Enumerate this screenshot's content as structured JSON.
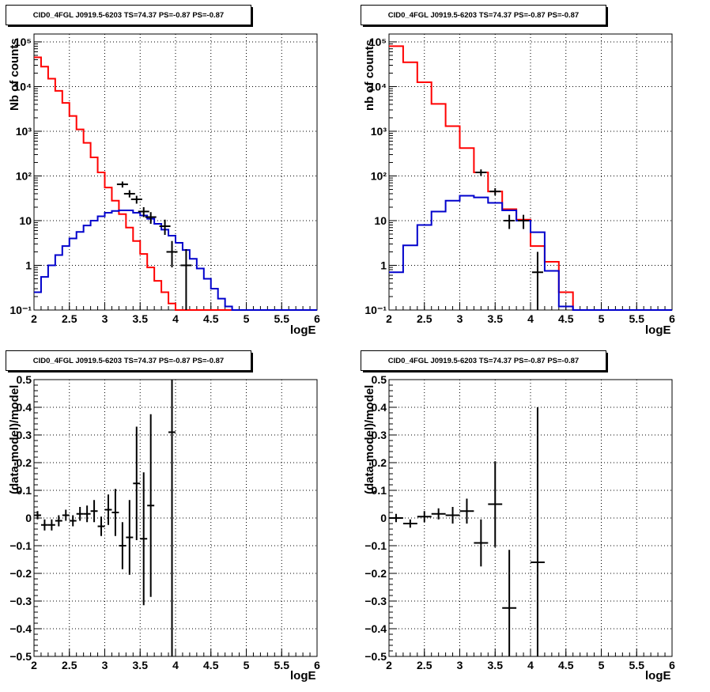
{
  "chart_data": [
    {
      "type": "line",
      "panel": "top-left",
      "title": "CID0_4FGL J0919.5-6203 TS=74.37 PS=-0.87 PS=-0.87",
      "xlabel": "logE",
      "ylabel": "Nb of counts",
      "xlim": [
        2,
        6
      ],
      "ylim": [
        0.1,
        150000
      ],
      "yscale": "log",
      "grid": true,
      "x_ticks": [
        "2",
        "2.5",
        "3",
        "3.5",
        "4",
        "4.5",
        "5",
        "5.5",
        "6"
      ],
      "y_ticks": [
        {
          "value": 0.1,
          "label": "10⁻¹"
        },
        {
          "value": 1,
          "label": "1"
        },
        {
          "value": 10,
          "label": "10"
        },
        {
          "value": 100,
          "label": "10²"
        },
        {
          "value": 1000,
          "label": "10³"
        },
        {
          "value": 10000,
          "label": "10⁴"
        },
        {
          "value": 100000,
          "label": "10⁵"
        }
      ],
      "bin_edges": [
        2.0,
        2.1,
        2.2,
        2.3,
        2.4,
        2.5,
        2.6,
        2.7,
        2.8,
        2.9,
        3.0,
        3.1,
        3.2,
        3.3,
        3.4,
        3.5,
        3.6,
        3.7,
        3.8,
        3.9,
        4.0,
        4.1,
        4.2,
        4.3,
        4.4,
        4.5,
        4.6,
        4.7,
        4.8,
        4.9,
        5.0,
        5.1,
        5.2,
        5.3,
        5.4,
        5.5,
        5.6,
        5.7,
        5.8,
        5.9,
        6.0
      ],
      "series": [
        {
          "color": "#ff0000",
          "style": "step",
          "values": [
            45000,
            28000,
            15000,
            8000,
            4300,
            2200,
            1100,
            550,
            260,
            120,
            55,
            28,
            14,
            7,
            3.5,
            1.8,
            0.9,
            0.45,
            0.25,
            0.14,
            0.1,
            0.1,
            0.1,
            0.1,
            0.1,
            0.1,
            0.1,
            0.1,
            0.1,
            0.1,
            0.1,
            0.1,
            0.1,
            0.1,
            0.1,
            0.1,
            0.1,
            0.1,
            0.1,
            0.1
          ]
        },
        {
          "color": "#0000cc",
          "style": "step",
          "values": [
            0.25,
            0.55,
            1.0,
            1.7,
            2.7,
            4.0,
            5.6,
            7.8,
            10,
            12.5,
            15,
            16.5,
            17,
            17,
            15,
            13,
            11,
            8.5,
            6.3,
            4.6,
            3.2,
            2.2,
            1.4,
            0.85,
            0.5,
            0.3,
            0.18,
            0.12,
            0.1,
            0.1,
            0.1,
            0.1,
            0.1,
            0.1,
            0.1,
            0.1,
            0.1,
            0.1,
            0.1,
            0.1
          ]
        },
        {
          "color": "#000000",
          "style": "points",
          "points": [
            {
              "x": 3.25,
              "y": 65,
              "lo": 55,
              "hi": 75
            },
            {
              "x": 3.35,
              "y": 40,
              "lo": 33,
              "hi": 48
            },
            {
              "x": 3.45,
              "y": 30,
              "lo": 24,
              "hi": 36
            },
            {
              "x": 3.55,
              "y": 16,
              "lo": 12,
              "hi": 20
            },
            {
              "x": 3.65,
              "y": 12,
              "lo": 8.5,
              "hi": 15.5
            },
            {
              "x": 3.85,
              "y": 7.5,
              "lo": 4.8,
              "hi": 10.5
            },
            {
              "x": 3.95,
              "y": 2,
              "lo": 0.9,
              "hi": 3.5
            },
            {
              "x": 4.15,
              "y": 1,
              "lo": 0.1,
              "hi": 2.3
            }
          ]
        }
      ]
    },
    {
      "type": "line",
      "panel": "top-right",
      "title": "CID0_4FGL J0919.5-6203 TS=74.37 PS=-0.87 PS=-0.87",
      "xlabel": "logE",
      "ylabel": "nb of counts",
      "xlim": [
        2,
        6
      ],
      "ylim": [
        0.1,
        150000
      ],
      "yscale": "log",
      "grid": true,
      "x_ticks": [
        "2",
        "2.5",
        "3",
        "3.5",
        "4",
        "4.5",
        "5",
        "5.5",
        "6"
      ],
      "y_ticks": [
        {
          "value": 0.1,
          "label": "10⁻¹"
        },
        {
          "value": 1,
          "label": "1"
        },
        {
          "value": 10,
          "label": "10"
        },
        {
          "value": 100,
          "label": "10²"
        },
        {
          "value": 1000,
          "label": "10³"
        },
        {
          "value": 10000,
          "label": "10⁴"
        },
        {
          "value": 100000,
          "label": "10⁵"
        }
      ],
      "bin_edges": [
        2.0,
        2.2,
        2.4,
        2.6,
        2.8,
        3.0,
        3.2,
        3.4,
        3.6,
        3.8,
        4.0,
        4.2,
        4.4,
        4.6,
        4.8,
        5.0,
        5.2,
        5.4,
        5.6,
        5.8,
        6.0
      ],
      "series": [
        {
          "color": "#ff0000",
          "style": "step",
          "values": [
            80000,
            35000,
            12500,
            4100,
            1300,
            420,
            120,
            45,
            18,
            10.5,
            2.7,
            1.2,
            0.25,
            0.1,
            0.1,
            0.1,
            0.1,
            0.1,
            0.1,
            0.1
          ]
        },
        {
          "color": "#0000cc",
          "style": "step",
          "values": [
            0.7,
            2.8,
            8,
            16,
            28,
            36,
            33,
            25,
            17,
            10,
            5.5,
            0.75,
            0.12,
            0.1,
            0.1,
            0.1,
            0.1,
            0.1,
            0.1,
            0.1
          ]
        },
        {
          "color": "#000000",
          "style": "points",
          "points": [
            {
              "x": 3.3,
              "y": 120,
              "lo": 100,
              "hi": 140
            },
            {
              "x": 3.5,
              "y": 45,
              "lo": 37,
              "hi": 53
            },
            {
              "x": 3.7,
              "y": 10,
              "lo": 6.5,
              "hi": 13.5
            },
            {
              "x": 3.9,
              "y": 10,
              "lo": 6.5,
              "hi": 13.5
            },
            {
              "x": 4.1,
              "y": 0.7,
              "lo": 0.1,
              "hi": 2
            }
          ]
        }
      ]
    },
    {
      "type": "scatter",
      "panel": "bottom-left",
      "title": "CID0_4FGL J0919.5-6203 TS=74.37 PS=-0.87 PS=-0.87",
      "xlabel": "logE",
      "ylabel": "(data-model)/model",
      "xlim": [
        2,
        6
      ],
      "ylim": [
        -0.5,
        0.5
      ],
      "grid": true,
      "x_ticks": [
        "2",
        "2.5",
        "3",
        "3.5",
        "4",
        "4.5",
        "5",
        "5.5",
        "6"
      ],
      "y_ticks": [
        {
          "value": -0.5,
          "label": "−0.5"
        },
        {
          "value": -0.4,
          "label": "−0.4"
        },
        {
          "value": -0.3,
          "label": "−0.3"
        },
        {
          "value": -0.2,
          "label": "−0.2"
        },
        {
          "value": -0.1,
          "label": "−0.1"
        },
        {
          "value": 0,
          "label": "0"
        },
        {
          "value": 0.1,
          "label": "0.1"
        },
        {
          "value": 0.2,
          "label": "0.2"
        },
        {
          "value": 0.3,
          "label": "0.3"
        },
        {
          "value": 0.4,
          "label": "0.4"
        },
        {
          "value": 0.5,
          "label": "0.5"
        }
      ],
      "x_halfwidth": 0.05,
      "points": [
        {
          "x": 2.05,
          "y": 0.01,
          "err": 0.015
        },
        {
          "x": 2.15,
          "y": -0.025,
          "err": 0.02
        },
        {
          "x": 2.25,
          "y": -0.025,
          "err": 0.02
        },
        {
          "x": 2.35,
          "y": -0.01,
          "err": 0.02
        },
        {
          "x": 2.45,
          "y": 0.01,
          "err": 0.02
        },
        {
          "x": 2.55,
          "y": -0.01,
          "err": 0.02
        },
        {
          "x": 2.65,
          "y": 0.015,
          "err": 0.025
        },
        {
          "x": 2.75,
          "y": 0.015,
          "err": 0.03
        },
        {
          "x": 2.85,
          "y": 0.025,
          "err": 0.04
        },
        {
          "x": 2.95,
          "y": -0.03,
          "err": 0.035
        },
        {
          "x": 3.05,
          "y": 0.03,
          "err": 0.055
        },
        {
          "x": 3.15,
          "y": 0.02,
          "err": 0.085
        },
        {
          "x": 3.25,
          "y": -0.1,
          "err": 0.085
        },
        {
          "x": 3.35,
          "y": -0.07,
          "err": 0.135
        },
        {
          "x": 3.45,
          "y": 0.125,
          "err": 0.205
        },
        {
          "x": 3.55,
          "y": -0.075,
          "err": 0.24
        },
        {
          "x": 3.65,
          "y": 0.045,
          "err": 0.33
        },
        {
          "x": 3.95,
          "y": 0.31,
          "err": 0.85
        }
      ]
    },
    {
      "type": "scatter",
      "panel": "bottom-right",
      "title": "CID0_4FGL J0919.5-6203 TS=74.37 PS=-0.87 PS=-0.87",
      "xlabel": "logE",
      "ylabel": "(data-model)/model",
      "xlim": [
        2,
        6
      ],
      "ylim": [
        -0.5,
        0.5
      ],
      "grid": true,
      "x_ticks": [
        "2",
        "2.5",
        "3",
        "3.5",
        "4",
        "4.5",
        "5",
        "5.5",
        "6"
      ],
      "y_ticks": [
        {
          "value": -0.5,
          "label": "−0.5"
        },
        {
          "value": -0.4,
          "label": "−0.4"
        },
        {
          "value": -0.3,
          "label": "−0.3"
        },
        {
          "value": -0.2,
          "label": "−0.2"
        },
        {
          "value": -0.1,
          "label": "−0.1"
        },
        {
          "value": 0,
          "label": "0"
        },
        {
          "value": 0.1,
          "label": "0.1"
        },
        {
          "value": 0.2,
          "label": "0.2"
        },
        {
          "value": 0.3,
          "label": "0.3"
        },
        {
          "value": 0.4,
          "label": "0.4"
        },
        {
          "value": 0.5,
          "label": "0.5"
        }
      ],
      "x_halfwidth": 0.1,
      "points": [
        {
          "x": 2.1,
          "y": 0.0,
          "err": 0.015
        },
        {
          "x": 2.3,
          "y": -0.02,
          "err": 0.015
        },
        {
          "x": 2.5,
          "y": 0.005,
          "err": 0.02
        },
        {
          "x": 2.7,
          "y": 0.015,
          "err": 0.02
        },
        {
          "x": 2.9,
          "y": 0.01,
          "err": 0.03
        },
        {
          "x": 3.1,
          "y": 0.025,
          "err": 0.045
        },
        {
          "x": 3.3,
          "y": -0.09,
          "err": 0.085
        },
        {
          "x": 3.5,
          "y": 0.05,
          "err": 0.155
        },
        {
          "x": 3.7,
          "y": -0.325,
          "err": 0.21
        },
        {
          "x": 4.1,
          "y": -0.16,
          "err": 0.56
        }
      ]
    }
  ]
}
